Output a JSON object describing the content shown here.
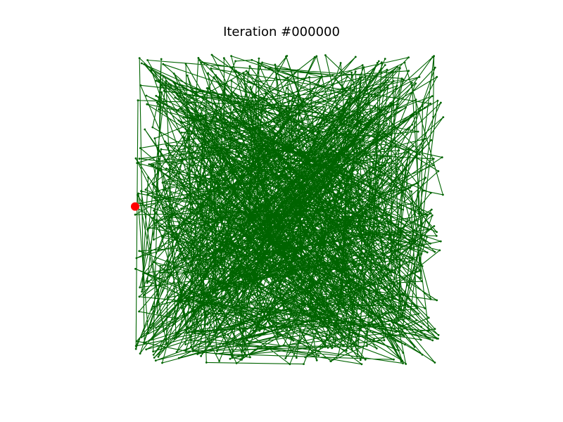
{
  "chart_data": {
    "type": "line",
    "title": "Iteration #000000",
    "xlabel": "",
    "ylabel": "",
    "xlim": [
      0,
      1
    ],
    "ylim": [
      0,
      1
    ],
    "axes_visible": false,
    "grid": false,
    "series": [
      {
        "kind": "tour",
        "closed": true,
        "color": "#006400",
        "node_count": 1000,
        "seed": 1337
      }
    ],
    "markers": [
      {
        "kind": "start-node",
        "color": "#ff0000",
        "x": 0.0,
        "y": 0.51
      }
    ]
  }
}
